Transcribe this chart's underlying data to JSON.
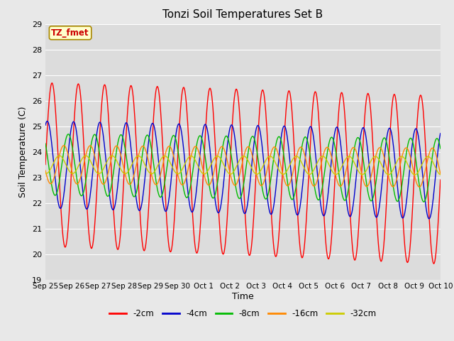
{
  "title": "Tonzi Soil Temperatures Set B",
  "xlabel": "Time",
  "ylabel": "Soil Temperature (C)",
  "ylim": [
    19.0,
    29.0
  ],
  "yticks": [
    19.0,
    20.0,
    21.0,
    22.0,
    23.0,
    24.0,
    25.0,
    26.0,
    27.0,
    28.0,
    29.0
  ],
  "xtick_labels": [
    "Sep 25",
    "Sep 26",
    "Sep 27",
    "Sep 28",
    "Sep 29",
    "Sep 30",
    "Oct 1",
    "Oct 2",
    "Oct 3",
    "Oct 4",
    "Oct 5",
    "Oct 6",
    "Oct 7",
    "Oct 8",
    "Oct 9",
    "Oct 10"
  ],
  "series_colors": [
    "#ff0000",
    "#0000cc",
    "#00bb00",
    "#ff8800",
    "#cccc00"
  ],
  "series_labels": [
    "-2cm",
    "-4cm",
    "-8cm",
    "-16cm",
    "-32cm"
  ],
  "annotation_text": "TZ_fmet",
  "annotation_bg": "#ffffcc",
  "annotation_border": "#aa8800",
  "plot_bg": "#dcdcdc",
  "fig_bg": "#e8e8e8",
  "n_days": 15,
  "n_pts": 720,
  "mean_temp": 23.5,
  "amplitudes": [
    3.2,
    1.7,
    1.2,
    0.75,
    0.35
  ],
  "phase_shifts": [
    0.0,
    0.18,
    0.38,
    0.55,
    0.72
  ],
  "trend": [
    -0.04,
    -0.025,
    -0.015,
    -0.008,
    -0.003
  ],
  "amp_growth": [
    0.006,
    0.004,
    0.003,
    0.001,
    0.0005
  ]
}
